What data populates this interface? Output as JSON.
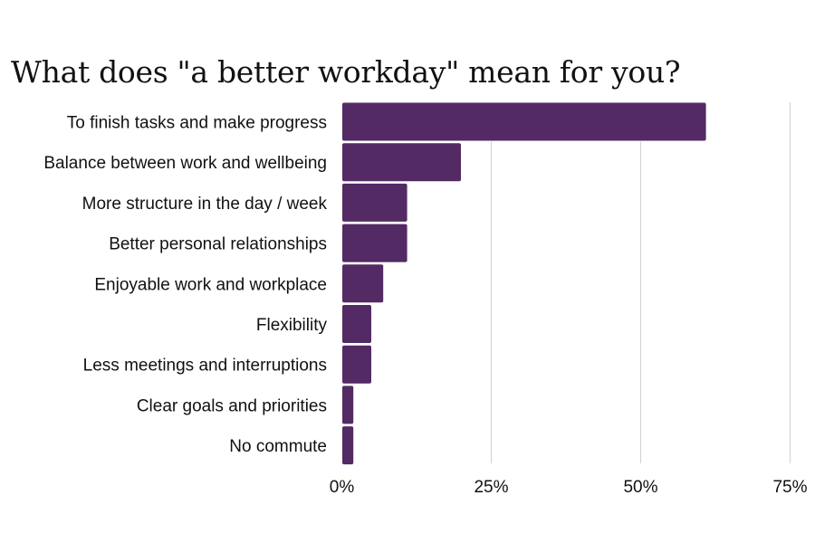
{
  "chart_data": {
    "type": "bar",
    "orientation": "horizontal",
    "title": "What does \"a better workday\" mean for you?",
    "categories": [
      "To finish tasks and make progress",
      "Balance between work and wellbeing",
      "More structure in the day / week",
      "Better personal relationships",
      "Enjoyable work and workplace",
      "Flexibility",
      "Less meetings and interruptions",
      "Clear goals and priorities",
      "No commute"
    ],
    "values": [
      61,
      20,
      11,
      11,
      7,
      5,
      5,
      2,
      2
    ],
    "unit": "%",
    "xlim": [
      0,
      75
    ],
    "xticks": [
      0,
      25,
      50,
      75
    ],
    "xtick_labels": [
      "0%",
      "25%",
      "50%",
      "75%"
    ],
    "grid": true,
    "bar_color": "#532a63",
    "xlabel": "",
    "ylabel": ""
  }
}
